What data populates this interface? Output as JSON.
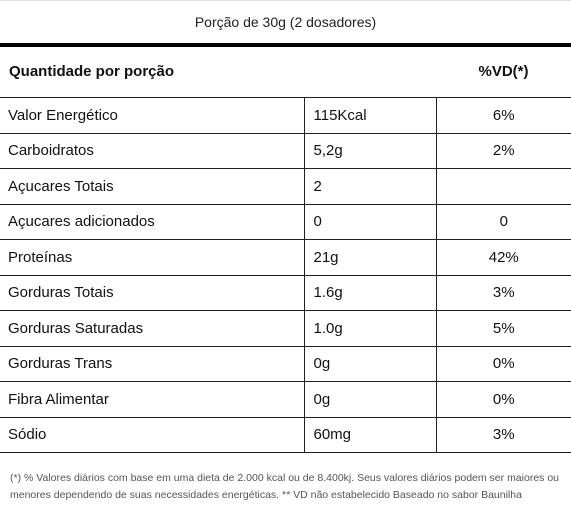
{
  "serving": "Porção de 30g (2 dosadores)",
  "header": {
    "left": "Quantidade por porção",
    "right": "%VD(*)"
  },
  "rows": [
    {
      "name": "Valor Energético",
      "amount": "115Kcal",
      "vd": "6%"
    },
    {
      "name": "Carboidratos",
      "amount": "5,2g",
      "vd": "2%"
    },
    {
      "name": "Açucares Totais",
      "amount": "2",
      "vd": ""
    },
    {
      "name": "Açucares adicionados",
      "amount": "0",
      "vd": "0"
    },
    {
      "name": "Proteínas",
      "amount": "21g",
      "vd": "42%"
    },
    {
      "name": "Gorduras Totais",
      "amount": "1.6g",
      "vd": "3%"
    },
    {
      "name": "Gorduras Saturadas",
      "amount": "1.0g",
      "vd": "5%"
    },
    {
      "name": "Gorduras Trans",
      "amount": "0g",
      "vd": "0%"
    },
    {
      "name": "Fibra Alimentar",
      "amount": "0g",
      "vd": "0%"
    },
    {
      "name": "Sódio",
      "amount": "60mg",
      "vd": "3%"
    }
  ],
  "footnote": "(*) % Valores diários com base em uma dieta de 2.000 kcal ou de 8.400kj. Seus valores diários podem ser maiores ou menores dependendo de suas necessidades energéticas. ** VD não estabelecido Baseado no sabor Baunilha"
}
